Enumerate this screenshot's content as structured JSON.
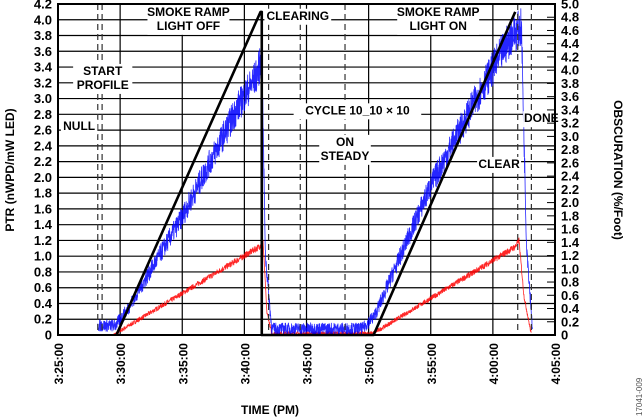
{
  "chart_data": {
    "type": "line",
    "xlabel": "TIME (PM)",
    "ylabel": "PTR (nWPD/mW LED)",
    "y2label": "OBSCURATION (%/Foot)",
    "x_unit": "minutes after 3:25:00",
    "xlim": [
      0,
      40
    ],
    "ylim": [
      0,
      4.2
    ],
    "y2lim": [
      0,
      5.0
    ],
    "grid": true,
    "x_ticks": [
      "3:25:00",
      "3:30:00",
      "3:35:00",
      "3:40:00",
      "3:45:00",
      "3:50:00",
      "3:55:00",
      "4:00:00",
      "4:05:00"
    ],
    "y_ticks": [
      "0",
      "0.2",
      "0.4",
      "0.6",
      "0.8",
      "1.0",
      "1.2",
      "1.4",
      "1.6",
      "1.8",
      "2.0",
      "2.2",
      "2.4",
      "2.6",
      "2.8",
      "3.0",
      "3.2",
      "3.4",
      "3.6",
      "3.8",
      "4.0",
      "4.2"
    ],
    "y2_ticks": [
      "0",
      "0.2",
      "0.4",
      "0.6",
      "0.8",
      "1.0",
      "1.2",
      "1.4",
      "1.6",
      "1.8",
      "2.0",
      "2.2",
      "2.4",
      "2.6",
      "2.8",
      "3.0",
      "3.2",
      "3.4",
      "3.6",
      "3.8",
      "4.0",
      "4.2",
      "4.4",
      "4.6",
      "4.8",
      "5.0"
    ],
    "series": [
      {
        "name": "obscuration",
        "color": "#000000",
        "noise": 0,
        "points": [
          [
            4.7,
            0
          ],
          [
            16.3,
            4.1
          ],
          [
            16.4,
            4.1
          ],
          [
            16.4,
            0
          ],
          [
            25.4,
            0
          ],
          [
            36.8,
            4.1
          ]
        ]
      },
      {
        "name": "ptr-blue",
        "color": "#0000ff",
        "noise": 0.18,
        "points": [
          [
            3.2,
            0.12
          ],
          [
            4.6,
            0.12
          ],
          [
            5.5,
            0.3
          ],
          [
            10,
            1.5
          ],
          [
            14.5,
            2.9
          ],
          [
            16,
            3.3
          ],
          [
            16.4,
            3.5
          ],
          [
            16.7,
            1.0
          ],
          [
            17.2,
            0.08
          ],
          [
            24.5,
            0.08
          ],
          [
            25.5,
            0.25
          ],
          [
            30,
            1.9
          ],
          [
            34,
            3.1
          ],
          [
            36.5,
            3.8
          ],
          [
            37.3,
            3.9
          ],
          [
            37.7,
            1.2
          ],
          [
            38.2,
            0.05
          ]
        ]
      },
      {
        "name": "ptr-red",
        "color": "#ff0000",
        "noise": 0.06,
        "points": [
          [
            4.5,
            0
          ],
          [
            5.5,
            0.1
          ],
          [
            16.2,
            1.12
          ],
          [
            16.5,
            1.2
          ],
          [
            16.8,
            0.3
          ],
          [
            17.2,
            0.02
          ],
          [
            25.3,
            0.02
          ],
          [
            26,
            0.08
          ],
          [
            36.8,
            1.12
          ],
          [
            37.1,
            1.2
          ],
          [
            37.5,
            0.5
          ],
          [
            38.1,
            0
          ]
        ]
      }
    ],
    "markers": [
      {
        "t": 3.2,
        "label": ""
      },
      {
        "t": 3.55,
        "label": ""
      },
      {
        "t": 16.95,
        "label": ""
      },
      {
        "t": 19.5,
        "label": ""
      },
      {
        "t": 23.1,
        "label": ""
      },
      {
        "t": 37.0,
        "label": ""
      },
      {
        "t": 38.1,
        "label": ""
      }
    ],
    "annotations": [
      {
        "lines": [
          "SMOKE RAMP",
          "LIGHT OFF"
        ],
        "t": 10.5,
        "y": 4.05
      },
      {
        "lines": [
          "CLEARING"
        ],
        "t": 19.3,
        "y": 4.0
      },
      {
        "lines": [
          "START",
          "PROFILE"
        ],
        "t": 3.6,
        "y": 3.3
      },
      {
        "lines": [
          "NULL"
        ],
        "t": 1.7,
        "y": 2.6
      },
      {
        "lines": [
          "CYCLE 10_10 × 10"
        ],
        "t": 24.1,
        "y": 2.8
      },
      {
        "lines": [
          "ON",
          "STEADY"
        ],
        "t": 23.1,
        "y": 2.4
      },
      {
        "lines": [
          "SMOKE RAMP",
          "LIGHT ON"
        ],
        "t": 30.6,
        "y": 4.05
      },
      {
        "lines": [
          "CLEAR"
        ],
        "t": 35.5,
        "y": 2.12
      },
      {
        "lines": [
          "DONE"
        ],
        "t": 38.9,
        "y": 2.7
      }
    ]
  },
  "figure_id": "17041-009"
}
